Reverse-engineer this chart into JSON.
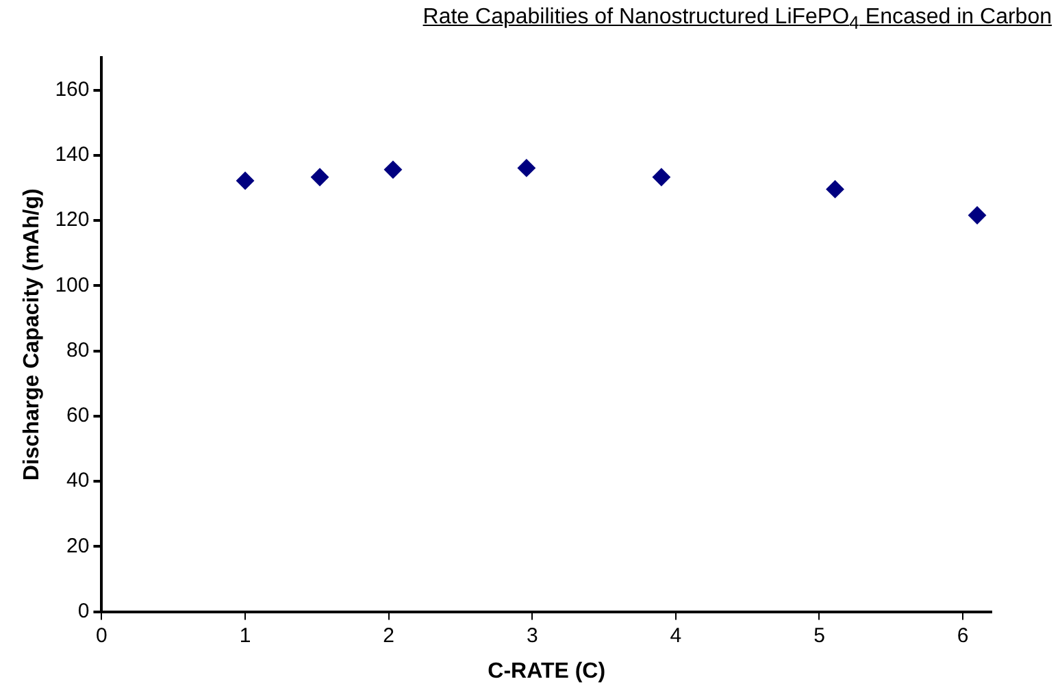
{
  "chart_data": {
    "type": "scatter",
    "title": "Rate Capabilities of Nanostructured LiFePO$_{4}$ Encased in Carbon",
    "xlabel": "C-RATE (C)",
    "ylabel": "Discharge Capacity (mAh/g)",
    "x": [
      1.0,
      1.52,
      2.03,
      2.96,
      3.9,
      5.11,
      6.1
    ],
    "series": [
      {
        "color": "#000080",
        "values": [
          132.2,
          133.3,
          135.6,
          136.1,
          133.3,
          129.6,
          121.6
        ]
      }
    ],
    "xlim": [
      0,
      6.2
    ],
    "xticks": [
      0,
      1,
      2,
      3,
      4,
      5,
      6
    ],
    "ylim": [
      0,
      170
    ],
    "yticks": [
      0,
      20,
      40,
      60,
      80,
      100,
      120,
      140,
      160
    ],
    "marker": "diamond",
    "grid": false,
    "legend": false
  }
}
